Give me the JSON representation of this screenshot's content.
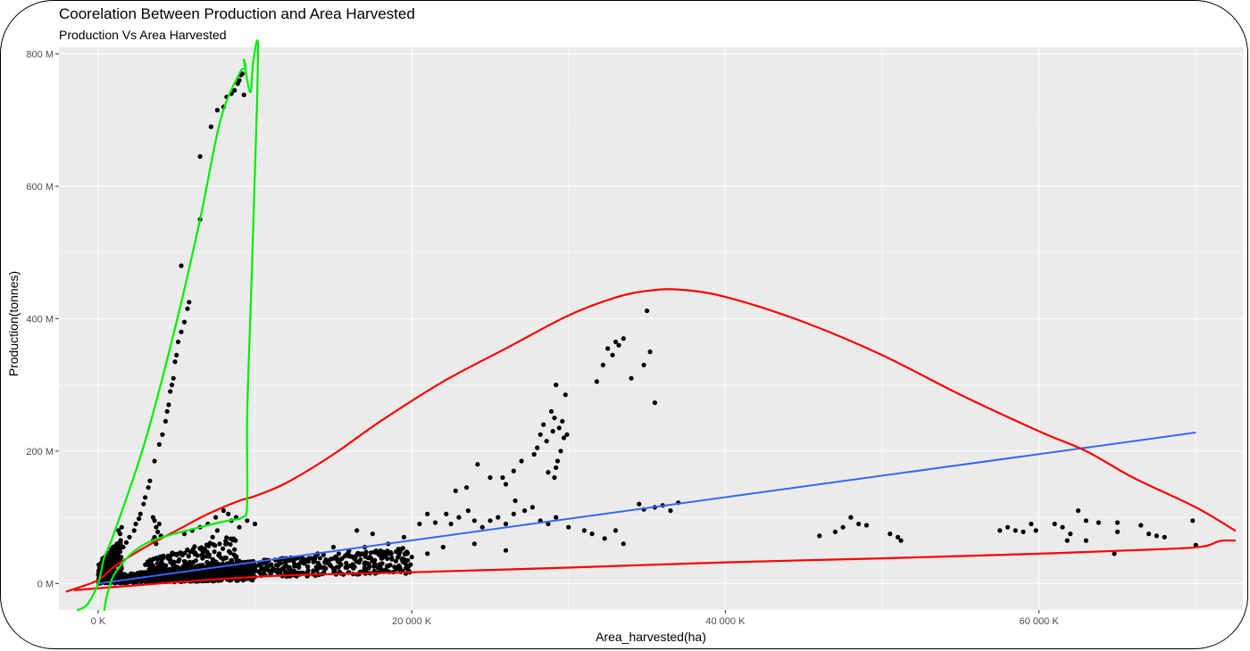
{
  "chart_data": {
    "type": "scatter",
    "title": "Coorelation Between Production and Area Harvested",
    "subtitle": "Production Vs Area Harvested",
    "xlabel": "Area_harvested(ha)",
    "ylabel": "Production(tonnes)",
    "xlim": [
      -2500,
      73000
    ],
    "ylim": [
      -40,
      810
    ],
    "x_unit": "K ha",
    "y_unit": "M tonnes",
    "grid": true,
    "x_ticks": [
      {
        "value": 0,
        "label": "0 K"
      },
      {
        "value": 20000,
        "label": "20 000 K"
      },
      {
        "value": 40000,
        "label": "40 000 K"
      },
      {
        "value": 60000,
        "label": "60 000 K"
      }
    ],
    "y_ticks": [
      {
        "value": 0,
        "label": "0 M"
      },
      {
        "value": 200,
        "label": "200 M"
      },
      {
        "value": 400,
        "label": "400 M"
      },
      {
        "value": 600,
        "label": "600 M"
      },
      {
        "value": 800,
        "label": "800 M"
      }
    ],
    "colors": {
      "panel": "#ebebeb",
      "grid_major": "#ffffff",
      "points": "#000000",
      "trend_line": "#3366ff",
      "annotation_red": "#ff0000",
      "annotation_green": "#00ee00"
    },
    "points": [
      [
        6500,
        645
      ],
      [
        7200,
        690
      ],
      [
        7600,
        715
      ],
      [
        8000,
        720
      ],
      [
        8200,
        735
      ],
      [
        8500,
        740
      ],
      [
        8700,
        745
      ],
      [
        8900,
        755
      ],
      [
        9000,
        760
      ],
      [
        9100,
        768
      ],
      [
        9200,
        770
      ],
      [
        9300,
        738
      ],
      [
        5300,
        480
      ],
      [
        6500,
        550
      ],
      [
        5800,
        425
      ],
      [
        5700,
        415
      ],
      [
        5500,
        395
      ],
      [
        5300,
        380
      ],
      [
        5100,
        365
      ],
      [
        5000,
        345
      ],
      [
        4900,
        335
      ],
      [
        4800,
        310
      ],
      [
        4700,
        300
      ],
      [
        4600,
        290
      ],
      [
        4500,
        270
      ],
      [
        4400,
        260
      ],
      [
        4300,
        245
      ],
      [
        4100,
        225
      ],
      [
        3900,
        210
      ],
      [
        3600,
        185
      ],
      [
        3300,
        155
      ],
      [
        3200,
        145
      ],
      [
        3000,
        130
      ],
      [
        2900,
        120
      ],
      [
        2700,
        105
      ],
      [
        2600,
        98
      ],
      [
        2400,
        90
      ],
      [
        2300,
        80
      ],
      [
        2000,
        70
      ],
      [
        1800,
        62
      ],
      [
        1600,
        55
      ],
      [
        1400,
        48
      ],
      [
        1300,
        80
      ],
      [
        1400,
        75
      ],
      [
        1500,
        85
      ],
      [
        1200,
        60
      ],
      [
        3500,
        100
      ],
      [
        3600,
        95
      ],
      [
        3700,
        85
      ],
      [
        3800,
        78
      ],
      [
        3900,
        90
      ],
      [
        4000,
        72
      ],
      [
        3500,
        65
      ],
      [
        3600,
        70
      ],
      [
        3700,
        60
      ],
      [
        5500,
        75
      ],
      [
        6000,
        80
      ],
      [
        6500,
        85
      ],
      [
        7000,
        90
      ],
      [
        7500,
        100
      ],
      [
        8000,
        110
      ],
      [
        8300,
        105
      ],
      [
        8500,
        95
      ],
      [
        8800,
        100
      ],
      [
        9000,
        85
      ],
      [
        9500,
        95
      ],
      [
        10000,
        90
      ],
      [
        7300,
        70
      ],
      [
        7600,
        80
      ],
      [
        33000,
        365
      ],
      [
        33500,
        370
      ],
      [
        34000,
        310
      ],
      [
        35000,
        412
      ],
      [
        35200,
        350
      ],
      [
        35500,
        273
      ],
      [
        34800,
        330
      ],
      [
        32800,
        345
      ],
      [
        32500,
        355
      ],
      [
        31800,
        305
      ],
      [
        32200,
        330
      ],
      [
        33200,
        360
      ],
      [
        29200,
        300
      ],
      [
        29800,
        285
      ],
      [
        29600,
        245
      ],
      [
        29400,
        235
      ],
      [
        29100,
        250
      ],
      [
        28900,
        260
      ],
      [
        29000,
        230
      ],
      [
        28600,
        215
      ],
      [
        28400,
        240
      ],
      [
        28200,
        225
      ],
      [
        28000,
        205
      ],
      [
        29500,
        200
      ],
      [
        29300,
        185
      ],
      [
        29700,
        220
      ],
      [
        29200,
        175
      ],
      [
        29100,
        160
      ],
      [
        28700,
        168
      ],
      [
        27800,
        195
      ],
      [
        29900,
        225
      ],
      [
        27000,
        185
      ],
      [
        26500,
        170
      ],
      [
        25800,
        160
      ],
      [
        26000,
        150
      ],
      [
        26600,
        125
      ],
      [
        25000,
        160
      ],
      [
        24200,
        180
      ],
      [
        23500,
        145
      ],
      [
        22800,
        140
      ],
      [
        22200,
        105
      ],
      [
        21000,
        105
      ],
      [
        20500,
        90
      ],
      [
        21500,
        92
      ],
      [
        22500,
        90
      ],
      [
        23000,
        100
      ],
      [
        23600,
        110
      ],
      [
        24000,
        95
      ],
      [
        24500,
        85
      ],
      [
        25000,
        95
      ],
      [
        25500,
        100
      ],
      [
        26000,
        90
      ],
      [
        26500,
        105
      ],
      [
        27200,
        110
      ],
      [
        27700,
        115
      ],
      [
        28200,
        95
      ],
      [
        28700,
        90
      ],
      [
        29200,
        100
      ],
      [
        30000,
        85
      ],
      [
        31000,
        80
      ],
      [
        31500,
        75
      ],
      [
        32300,
        68
      ],
      [
        33000,
        80
      ],
      [
        33500,
        60
      ],
      [
        36000,
        118
      ],
      [
        37000,
        122
      ],
      [
        34500,
        120
      ],
      [
        35500,
        115
      ],
      [
        36500,
        110
      ],
      [
        34800,
        112
      ],
      [
        46000,
        72
      ],
      [
        47000,
        78
      ],
      [
        47500,
        85
      ],
      [
        48000,
        100
      ],
      [
        48500,
        90
      ],
      [
        49000,
        88
      ],
      [
        50500,
        75
      ],
      [
        51000,
        70
      ],
      [
        51200,
        65
      ],
      [
        57500,
        80
      ],
      [
        58000,
        85
      ],
      [
        58500,
        80
      ],
      [
        59000,
        78
      ],
      [
        59500,
        90
      ],
      [
        59800,
        80
      ],
      [
        61000,
        90
      ],
      [
        61500,
        85
      ],
      [
        62000,
        75
      ],
      [
        62500,
        110
      ],
      [
        63000,
        95
      ],
      [
        63800,
        92
      ],
      [
        65000,
        92
      ],
      [
        66500,
        88
      ],
      [
        67000,
        75
      ],
      [
        67500,
        72
      ],
      [
        68000,
        70
      ],
      [
        69800,
        95
      ],
      [
        70000,
        58
      ],
      [
        65000,
        78
      ],
      [
        61800,
        65
      ],
      [
        63000,
        65
      ],
      [
        64800,
        45
      ],
      [
        14000,
        45
      ],
      [
        15000,
        55
      ],
      [
        16000,
        50
      ],
      [
        17000,
        55
      ],
      [
        18000,
        45
      ],
      [
        19000,
        48
      ],
      [
        13000,
        40
      ],
      [
        12000,
        38
      ],
      [
        20000,
        40
      ],
      [
        21000,
        45
      ],
      [
        24000,
        60
      ],
      [
        22000,
        55
      ],
      [
        26000,
        50
      ],
      [
        18500,
        60
      ],
      [
        17500,
        75
      ],
      [
        16500,
        80
      ],
      [
        19500,
        70
      ]
    ],
    "bands": [
      {
        "x_start": 0,
        "x_end": 10000,
        "y_low_start": 0,
        "y_low_end": 5,
        "y_high_start": 10,
        "y_high_end": 35,
        "count": 900
      },
      {
        "x_start": 3000,
        "x_end": 20000,
        "y_low_start": 5,
        "y_low_end": 15,
        "y_high_start": 20,
        "y_high_end": 55,
        "count": 450
      },
      {
        "x_start": 0,
        "x_end": 1500,
        "y_low_start": 0,
        "y_low_end": 15,
        "y_high_start": 30,
        "y_high_end": 70,
        "count": 160
      },
      {
        "x_start": 3000,
        "x_end": 9000,
        "y_low_start": 15,
        "y_low_end": 25,
        "y_high_start": 35,
        "y_high_end": 75,
        "count": 160
      }
    ],
    "trend_line": {
      "x": [
        0,
        70000
      ],
      "y": [
        0,
        228
      ]
    },
    "annotations": [
      {
        "color": "red",
        "path": [
          [
            -2000,
            -12
          ],
          [
            0,
            5
          ],
          [
            1000,
            25
          ],
          [
            3000,
            55
          ],
          [
            5000,
            80
          ],
          [
            7000,
            105
          ],
          [
            9000,
            125
          ],
          [
            10000,
            132
          ],
          [
            12000,
            152
          ],
          [
            15000,
            195
          ],
          [
            18000,
            245
          ],
          [
            22000,
            305
          ],
          [
            26000,
            355
          ],
          [
            30000,
            405
          ],
          [
            33000,
            432
          ],
          [
            35000,
            442
          ],
          [
            37000,
            444
          ],
          [
            40000,
            433
          ],
          [
            45000,
            395
          ],
          [
            50000,
            345
          ],
          [
            55000,
            285
          ],
          [
            60000,
            230
          ],
          [
            63000,
            200
          ],
          [
            66000,
            160
          ],
          [
            70000,
            115
          ],
          [
            72500,
            80
          ]
        ]
      },
      {
        "color": "red",
        "path": [
          [
            -1500,
            -10
          ],
          [
            10000,
            10
          ],
          [
            20000,
            17
          ],
          [
            30000,
            24
          ],
          [
            40000,
            32
          ],
          [
            50000,
            38
          ],
          [
            60000,
            45
          ],
          [
            68000,
            52
          ],
          [
            70500,
            56
          ],
          [
            71500,
            64
          ],
          [
            72500,
            65
          ]
        ]
      },
      {
        "color": "green",
        "path": [
          [
            -1300,
            -40
          ],
          [
            -700,
            -32
          ],
          [
            0,
            0
          ],
          [
            400,
            40
          ],
          [
            1000,
            75
          ],
          [
            3000,
            215
          ],
          [
            5000,
            395
          ],
          [
            6500,
            550
          ],
          [
            7800,
            700
          ],
          [
            9000,
            770
          ],
          [
            9400,
            778
          ],
          [
            9300,
            790
          ],
          [
            9700,
            742
          ],
          [
            9900,
            790
          ],
          [
            10200,
            810
          ],
          [
            10000,
            620
          ],
          [
            9700,
            400
          ],
          [
            9500,
            250
          ],
          [
            9500,
            120
          ],
          [
            9200,
            100
          ],
          [
            8300,
            95
          ],
          [
            6500,
            85
          ],
          [
            3000,
            60
          ],
          [
            1200,
            20
          ],
          [
            600,
            -15
          ],
          [
            400,
            -40
          ]
        ]
      }
    ]
  }
}
